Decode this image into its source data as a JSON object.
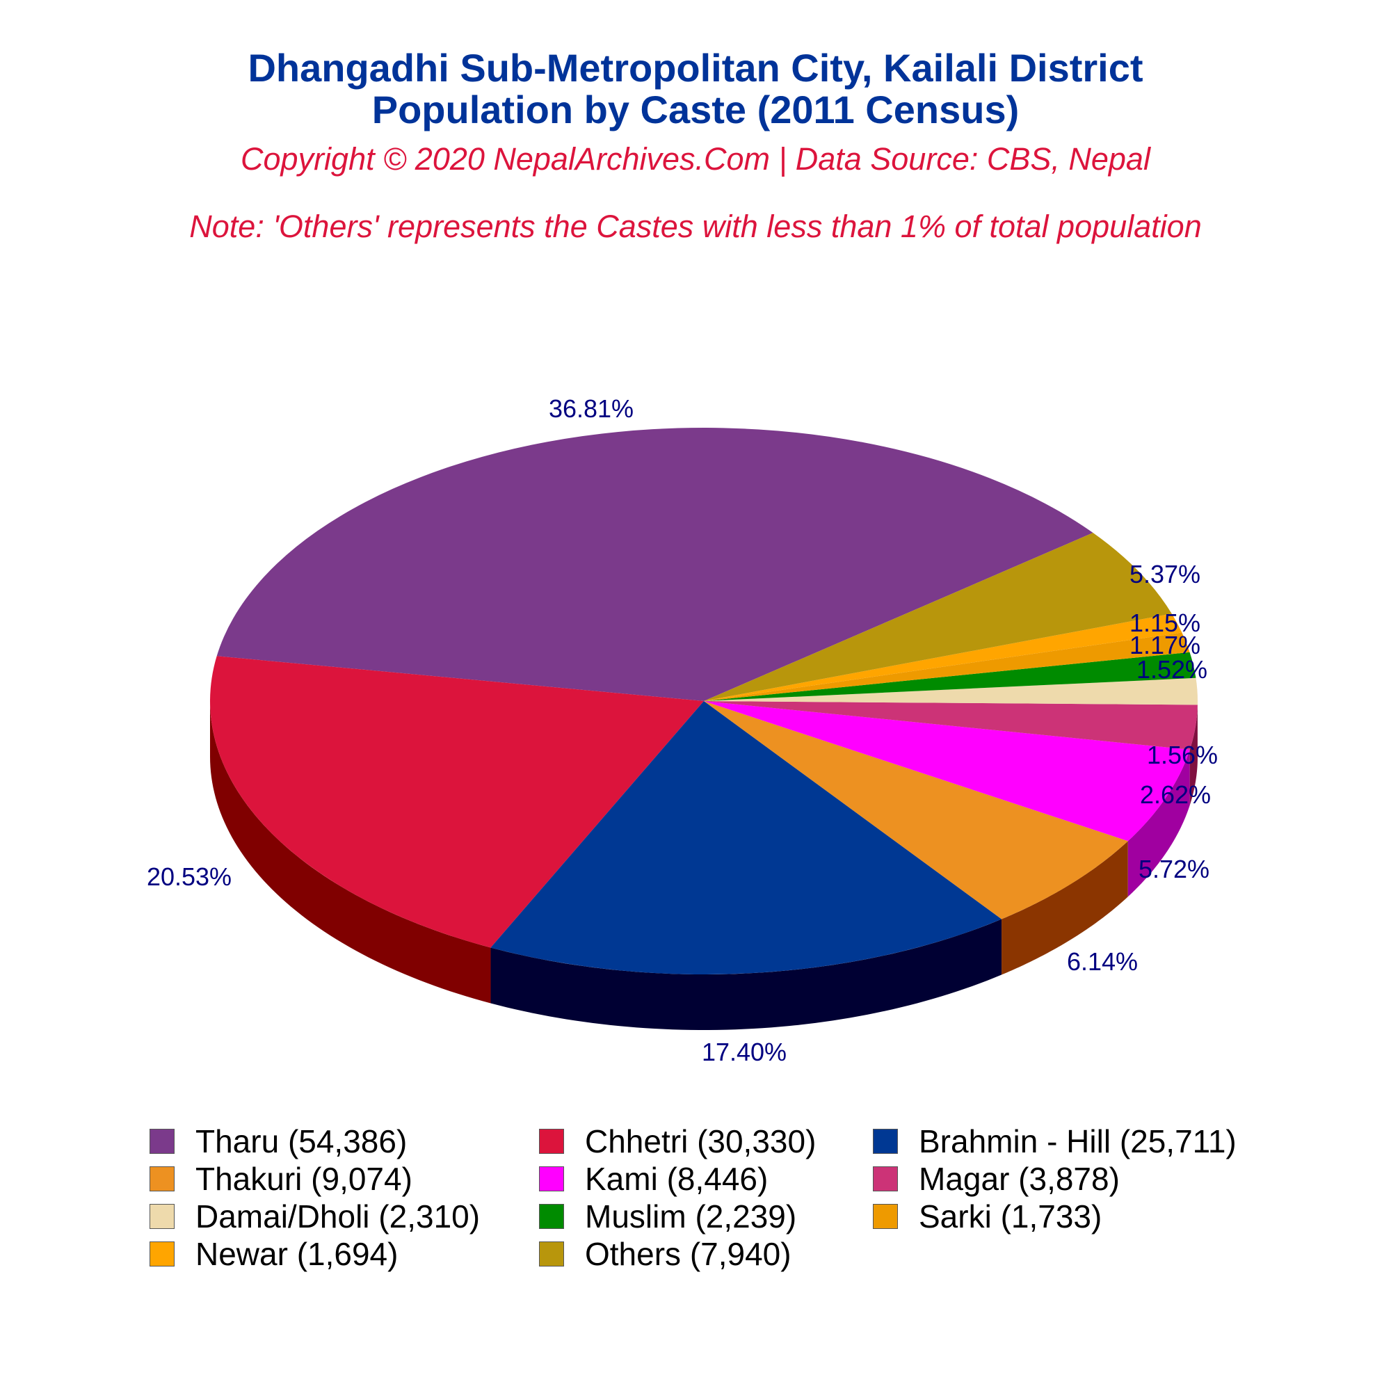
{
  "header": {
    "title_line1": "Dhangadhi Sub-Metropolitan City, Kailali District",
    "title_line2": "Population by Caste (2011 Census)",
    "copyright": "Copyright © 2020 NepalArchives.Com | Data Source: CBS, Nepal",
    "note": "Note: 'Others' represents the Castes with less than 1% of total population"
  },
  "chart_data": {
    "type": "pie",
    "title": "Dhangadhi Sub-Metropolitan City, Kailali District Population by Caste (2011 Census)",
    "legend_position": "bottom",
    "slices": [
      {
        "label": "Tharu (54,386)",
        "value": 54386,
        "percent": "36.81%",
        "color": "#7b3a8b",
        "side": "#4b1f57"
      },
      {
        "label": "Chhetri (30,330)",
        "value": 30330,
        "percent": "20.53%",
        "color": "#dc143c",
        "side": "#800000"
      },
      {
        "label": "Brahmin - Hill (25,711)",
        "value": 25711,
        "percent": "17.40%",
        "color": "#003893",
        "side": "#000033"
      },
      {
        "label": "Thakuri (9,074)",
        "value": 9074,
        "percent": "6.14%",
        "color": "#ed9121",
        "side": "#8b3500"
      },
      {
        "label": "Kami (8,446)",
        "value": 8446,
        "percent": "5.72%",
        "color": "#ff00ff",
        "side": "#a000a0"
      },
      {
        "label": "Magar (3,878)",
        "value": 3878,
        "percent": "2.62%",
        "color": "#cc3377",
        "side": "#801040"
      },
      {
        "label": "Damai/Dholi (2,310)",
        "value": 2310,
        "percent": "1.56%",
        "color": "#eedaac",
        "side": "#a08a60"
      },
      {
        "label": "Muslim (2,239)",
        "value": 2239,
        "percent": "1.52%",
        "color": "#008b00",
        "side": "#004d00"
      },
      {
        "label": "Sarki (1,733)",
        "value": 1733,
        "percent": "1.17%",
        "color": "#ee9a00",
        "side": "#8b5a00"
      },
      {
        "label": "Newar (1,694)",
        "value": 1694,
        "percent": "1.15%",
        "color": "#ffa500",
        "side": "#8b5a00"
      },
      {
        "label": "Others (7,940)",
        "value": 7940,
        "percent": "5.37%",
        "color": "#b8960c",
        "side": "#6b5500"
      }
    ]
  }
}
